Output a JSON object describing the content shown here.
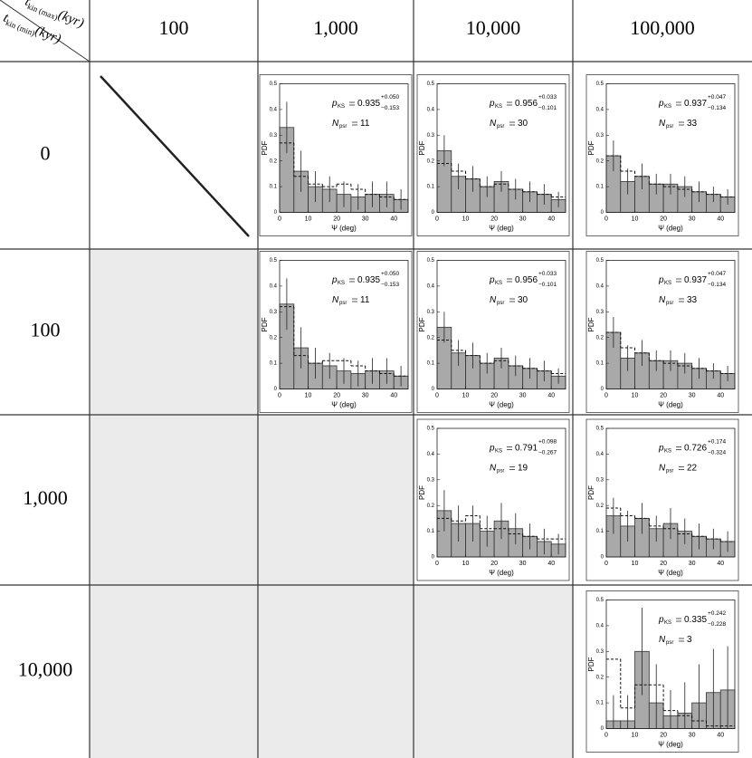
{
  "table": {
    "corner": {
      "top": {
        "symbol": "t",
        "subscript": "kin (max)",
        "unit": "(kyr)"
      },
      "bottom": {
        "symbol": "t",
        "subscript": "kin (min)",
        "unit": "(kyr)"
      }
    },
    "columns": [
      "100",
      "1,000",
      "10,000",
      "100,000"
    ],
    "rows": [
      {
        "label": "0",
        "cells": [
          null,
          {
            "type": "histogram",
            "color": "#a9a9a9",
            "bins": [
              0,
              5,
              10,
              15,
              20,
              25,
              30,
              35,
              40,
              45
            ],
            "values": [
              0.33,
              0.16,
              0.1,
              0.09,
              0.07,
              0.06,
              0.07,
              0.07,
              0.05
            ],
            "errors": [
              0.1,
              0.08,
              0.06,
              0.05,
              0.05,
              0.05,
              0.05,
              0.05,
              0.04
            ],
            "model_values": [
              0.27,
              0.14,
              0.11,
              0.1,
              0.11,
              0.09,
              0.07,
              0.06,
              0.05
            ],
            "xlim": [
              0,
              45
            ],
            "ylim": [
              0,
              0.5
            ],
            "xticks": [
              0,
              10,
              20,
              30,
              40
            ],
            "yticks": [
              0,
              0.1,
              0.2,
              0.3,
              0.4,
              0.5
            ],
            "x_label": "Ψ (deg)",
            "y_label": "PDF",
            "stat": {
              "symbol": "p",
              "subscript": "KS",
              "value": 0.935,
              "plus": {
                "value": 0.05,
                "label": "+0.050"
              },
              "minus": {
                "value": -0.153,
                "label": "−0.153"
              }
            },
            "count": {
              "symbol": "N",
              "subscript": "psr",
              "value": 11
            }
          },
          {
            "type": "histogram",
            "color": "#a9a9a9",
            "bins": [
              0,
              5,
              10,
              15,
              20,
              25,
              30,
              35,
              40,
              45
            ],
            "values": [
              0.24,
              0.14,
              0.13,
              0.1,
              0.12,
              0.09,
              0.08,
              0.07,
              0.05
            ],
            "errors": [
              0.06,
              0.05,
              0.05,
              0.04,
              0.04,
              0.04,
              0.04,
              0.04,
              0.03
            ],
            "model_values": [
              0.19,
              0.16,
              0.13,
              0.1,
              0.11,
              0.09,
              0.08,
              0.07,
              0.06
            ],
            "xlim": [
              0,
              45
            ],
            "ylim": [
              0,
              0.5
            ],
            "xticks": [
              0,
              10,
              20,
              30,
              40
            ],
            "yticks": [
              0,
              0.1,
              0.2,
              0.3,
              0.4,
              0.5
            ],
            "x_label": "Ψ (deg)",
            "y_label": "PDF",
            "stat": {
              "symbol": "p",
              "subscript": "KS",
              "value": 0.956,
              "plus": {
                "value": 0.033,
                "label": "+0.033"
              },
              "minus": {
                "value": -0.101,
                "label": "−0.101"
              }
            },
            "count": {
              "symbol": "N",
              "subscript": "psr",
              "value": 30
            }
          },
          {
            "type": "histogram",
            "color": "#a9a9a9",
            "bins": [
              0,
              5,
              10,
              15,
              20,
              25,
              30,
              35,
              40,
              45
            ],
            "values": [
              0.22,
              0.12,
              0.14,
              0.11,
              0.11,
              0.1,
              0.08,
              0.07,
              0.06
            ],
            "errors": [
              0.06,
              0.05,
              0.05,
              0.04,
              0.04,
              0.04,
              0.04,
              0.03,
              0.03
            ],
            "model_values": [
              0.22,
              0.16,
              0.14,
              0.11,
              0.1,
              0.09,
              0.08,
              0.07,
              0.06
            ],
            "xlim": [
              0,
              45
            ],
            "ylim": [
              0,
              0.5
            ],
            "xticks": [
              0,
              10,
              20,
              30,
              40
            ],
            "yticks": [
              0,
              0.1,
              0.2,
              0.3,
              0.4,
              0.5
            ],
            "x_label": "Ψ (deg)",
            "y_label": "PDF",
            "stat": {
              "symbol": "p",
              "subscript": "KS",
              "value": 0.937,
              "plus": {
                "value": 0.047,
                "label": "+0.047"
              },
              "minus": {
                "value": -0.134,
                "label": "−0.134"
              }
            },
            "count": {
              "symbol": "N",
              "subscript": "psr",
              "value": 33
            }
          }
        ]
      },
      {
        "label": "100",
        "cells": [
          null,
          {
            "type": "histogram",
            "color": "#a9a9a9",
            "bins": [
              0,
              5,
              10,
              15,
              20,
              25,
              30,
              35,
              40,
              45
            ],
            "values": [
              0.33,
              0.16,
              0.1,
              0.09,
              0.07,
              0.06,
              0.07,
              0.07,
              0.05
            ],
            "errors": [
              0.1,
              0.08,
              0.06,
              0.05,
              0.05,
              0.05,
              0.05,
              0.05,
              0.04
            ],
            "model_values": [
              0.32,
              0.13,
              0.1,
              0.11,
              0.11,
              0.09,
              0.07,
              0.06,
              0.05
            ],
            "xlim": [
              0,
              45
            ],
            "ylim": [
              0,
              0.5
            ],
            "xticks": [
              0,
              10,
              20,
              30,
              40
            ],
            "yticks": [
              0,
              0.1,
              0.2,
              0.3,
              0.4,
              0.5
            ],
            "x_label": "Ψ (deg)",
            "y_label": "PDF",
            "stat": {
              "symbol": "p",
              "subscript": "KS",
              "value": 0.935,
              "plus": {
                "value": 0.05,
                "label": "+0.050"
              },
              "minus": {
                "value": -0.153,
                "label": "−0.153"
              }
            },
            "count": {
              "symbol": "N",
              "subscript": "psr",
              "value": 11
            }
          },
          {
            "type": "histogram",
            "color": "#a9a9a9",
            "bins": [
              0,
              5,
              10,
              15,
              20,
              25,
              30,
              35,
              40,
              45
            ],
            "values": [
              0.24,
              0.14,
              0.13,
              0.1,
              0.12,
              0.09,
              0.08,
              0.07,
              0.05
            ],
            "errors": [
              0.06,
              0.05,
              0.05,
              0.04,
              0.04,
              0.04,
              0.04,
              0.04,
              0.03
            ],
            "model_values": [
              0.19,
              0.15,
              0.13,
              0.1,
              0.11,
              0.09,
              0.08,
              0.07,
              0.06
            ],
            "xlim": [
              0,
              45
            ],
            "ylim": [
              0,
              0.5
            ],
            "xticks": [
              0,
              10,
              20,
              30,
              40
            ],
            "yticks": [
              0,
              0.1,
              0.2,
              0.3,
              0.4,
              0.5
            ],
            "x_label": "Ψ (deg)",
            "y_label": "PDF",
            "stat": {
              "symbol": "p",
              "subscript": "KS",
              "value": 0.956,
              "plus": {
                "value": 0.033,
                "label": "+0.033"
              },
              "minus": {
                "value": -0.101,
                "label": "−0.101"
              }
            },
            "count": {
              "symbol": "N",
              "subscript": "psr",
              "value": 30
            }
          },
          {
            "type": "histogram",
            "color": "#a9a9a9",
            "bins": [
              0,
              5,
              10,
              15,
              20,
              25,
              30,
              35,
              40,
              45
            ],
            "values": [
              0.22,
              0.12,
              0.14,
              0.11,
              0.11,
              0.1,
              0.08,
              0.07,
              0.06
            ],
            "errors": [
              0.06,
              0.05,
              0.05,
              0.04,
              0.04,
              0.04,
              0.04,
              0.03,
              0.03
            ],
            "model_values": [
              0.22,
              0.16,
              0.14,
              0.11,
              0.1,
              0.09,
              0.08,
              0.07,
              0.06
            ],
            "xlim": [
              0,
              45
            ],
            "ylim": [
              0,
              0.5
            ],
            "xticks": [
              0,
              10,
              20,
              30,
              40
            ],
            "yticks": [
              0,
              0.1,
              0.2,
              0.3,
              0.4,
              0.5
            ],
            "x_label": "Ψ (deg)",
            "y_label": "PDF",
            "stat": {
              "symbol": "p",
              "subscript": "KS",
              "value": 0.937,
              "plus": {
                "value": 0.047,
                "label": "+0.047"
              },
              "minus": {
                "value": -0.134,
                "label": "−0.134"
              }
            },
            "count": {
              "symbol": "N",
              "subscript": "psr",
              "value": 33
            }
          }
        ]
      },
      {
        "label": "1,000",
        "cells": [
          null,
          null,
          {
            "type": "histogram",
            "color": "#a9a9a9",
            "bins": [
              0,
              5,
              10,
              15,
              20,
              25,
              30,
              35,
              40,
              45
            ],
            "values": [
              0.18,
              0.13,
              0.13,
              0.1,
              0.14,
              0.11,
              0.08,
              0.06,
              0.05
            ],
            "errors": [
              0.08,
              0.07,
              0.07,
              0.06,
              0.07,
              0.06,
              0.05,
              0.05,
              0.04
            ],
            "model_values": [
              0.15,
              0.14,
              0.16,
              0.11,
              0.11,
              0.09,
              0.08,
              0.07,
              0.07
            ],
            "xlim": [
              0,
              45
            ],
            "ylim": [
              0,
              0.5
            ],
            "xticks": [
              0,
              10,
              20,
              30,
              40
            ],
            "yticks": [
              0,
              0.1,
              0.2,
              0.3,
              0.4,
              0.5
            ],
            "x_label": "Ψ (deg)",
            "y_label": "PDF",
            "stat": {
              "symbol": "p",
              "subscript": "KS",
              "value": 0.791,
              "plus": {
                "value": 0.098,
                "label": "+0.098"
              },
              "minus": {
                "value": -0.267,
                "label": "−0.267"
              }
            },
            "count": {
              "symbol": "N",
              "subscript": "psr",
              "value": 19
            }
          },
          {
            "type": "histogram",
            "color": "#a9a9a9",
            "bins": [
              0,
              5,
              10,
              15,
              20,
              25,
              30,
              35,
              40,
              45
            ],
            "values": [
              0.16,
              0.12,
              0.15,
              0.11,
              0.13,
              0.1,
              0.08,
              0.07,
              0.06
            ],
            "errors": [
              0.07,
              0.06,
              0.06,
              0.05,
              0.06,
              0.05,
              0.05,
              0.04,
              0.04
            ],
            "model_values": [
              0.19,
              0.16,
              0.15,
              0.12,
              0.11,
              0.09,
              0.08,
              0.07,
              0.06
            ],
            "xlim": [
              0,
              45
            ],
            "ylim": [
              0,
              0.5
            ],
            "xticks": [
              0,
              10,
              20,
              30,
              40
            ],
            "yticks": [
              0,
              0.1,
              0.2,
              0.3,
              0.4,
              0.5
            ],
            "x_label": "Ψ (deg)",
            "y_label": "PDF",
            "stat": {
              "symbol": "p",
              "subscript": "KS",
              "value": 0.726,
              "plus": {
                "value": 0.174,
                "label": "+0.174"
              },
              "minus": {
                "value": -0.324,
                "label": "−0.324"
              }
            },
            "count": {
              "symbol": "N",
              "subscript": "psr",
              "value": 22
            }
          }
        ]
      },
      {
        "label": "10,000",
        "cells": [
          null,
          null,
          null,
          {
            "type": "histogram",
            "color": "#a9a9a9",
            "bins": [
              0,
              5,
              10,
              15,
              20,
              25,
              30,
              35,
              40,
              45
            ],
            "values": [
              0.03,
              0.03,
              0.3,
              0.1,
              0.05,
              0.06,
              0.1,
              0.14,
              0.15
            ],
            "errors": [
              0.1,
              0.1,
              0.17,
              0.15,
              0.1,
              0.12,
              0.15,
              0.17,
              0.17
            ],
            "model_values": [
              0.27,
              0.08,
              0.17,
              0.17,
              0.07,
              0.05,
              0.03,
              0.01,
              0.01
            ],
            "xlim": [
              0,
              45
            ],
            "ylim": [
              0,
              0.5
            ],
            "xticks": [
              0,
              10,
              20,
              30,
              40
            ],
            "yticks": [
              0,
              0.1,
              0.2,
              0.3,
              0.4,
              0.5
            ],
            "x_label": "Ψ (deg)",
            "y_label": "PDF",
            "stat": {
              "symbol": "p",
              "subscript": "KS",
              "value": 0.335,
              "plus": {
                "value": 0.242,
                "label": "+0.242"
              },
              "minus": {
                "value": -0.228,
                "label": "−0.228"
              }
            },
            "count": {
              "symbol": "N",
              "subscript": "psr",
              "value": 3
            }
          }
        ]
      }
    ]
  }
}
